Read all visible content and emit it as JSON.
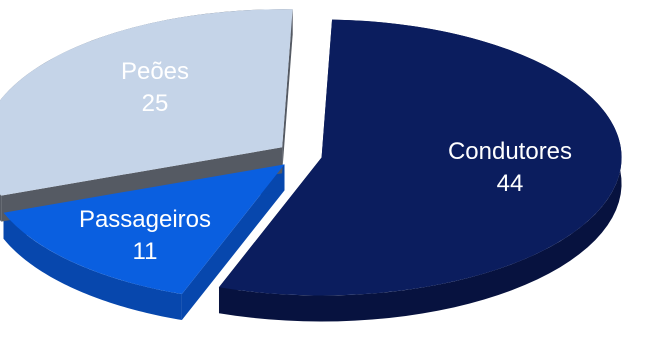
{
  "chart_data": {
    "type": "pie",
    "style": "3d-exploded",
    "slices": [
      {
        "label": "Condutores",
        "value": 44,
        "color": "#0b1d5e",
        "side_color": "#07123f",
        "text_color": "#ffffff"
      },
      {
        "label": "Passageiros",
        "value": 11,
        "color": "#0a5fe0",
        "side_color": "#0747ad",
        "text_color": "#ffffff"
      },
      {
        "label": "Peões",
        "value": 25,
        "color": "#c5d4e8",
        "side_color": "#555a63",
        "text_color": "#ffffff"
      }
    ]
  }
}
